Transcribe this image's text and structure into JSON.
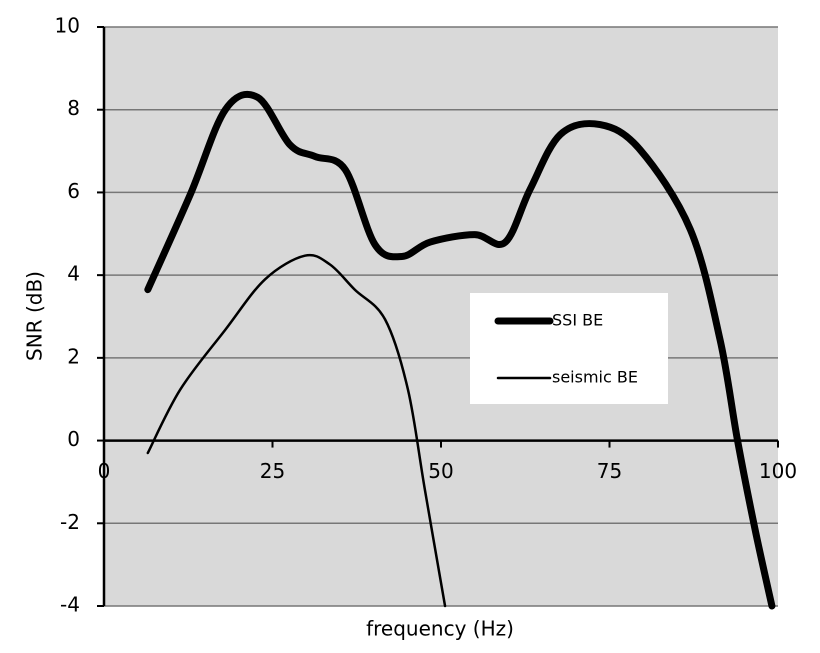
{
  "chart_data": {
    "type": "line",
    "xlabel": "frequency (Hz)",
    "ylabel": "SNR (dB)",
    "xlim": [
      0,
      100
    ],
    "xticks": [
      0,
      25,
      50,
      75,
      100
    ],
    "ylim": [
      -4,
      10
    ],
    "yticks": [
      -4,
      -2,
      0,
      2,
      4,
      6,
      8,
      10
    ],
    "grid": true,
    "legend": "right",
    "series": [
      {
        "name": "SSI BE",
        "color": "#000000",
        "line_width": 7,
        "x": [
          6.5,
          12.8,
          18,
          22.8,
          27.6,
          31.3,
          35.8,
          40.2,
          44.2,
          48.4,
          55,
          59.5,
          63.2,
          67.7,
          73.6,
          79.5,
          87,
          91.4,
          94,
          96.6,
          99.1
        ],
        "values": [
          3.65,
          5.95,
          8.0,
          8.3,
          7.15,
          6.87,
          6.55,
          4.74,
          4.45,
          4.8,
          4.98,
          4.79,
          6.07,
          7.4,
          7.64,
          7.04,
          5.1,
          2.44,
          0,
          -2.15,
          -4
        ]
      },
      {
        "name": "seismic BE",
        "color": "#000000",
        "line_width": 2.5,
        "x": [
          6.5,
          11.3,
          18,
          23.9,
          29.8,
          33.5,
          37.2,
          41.7,
          45.1,
          47.6,
          50.6
        ],
        "values": [
          -0.3,
          1.23,
          2.68,
          3.9,
          4.47,
          4.26,
          3.65,
          2.93,
          1.23,
          -1.18,
          -4
        ]
      }
    ]
  }
}
